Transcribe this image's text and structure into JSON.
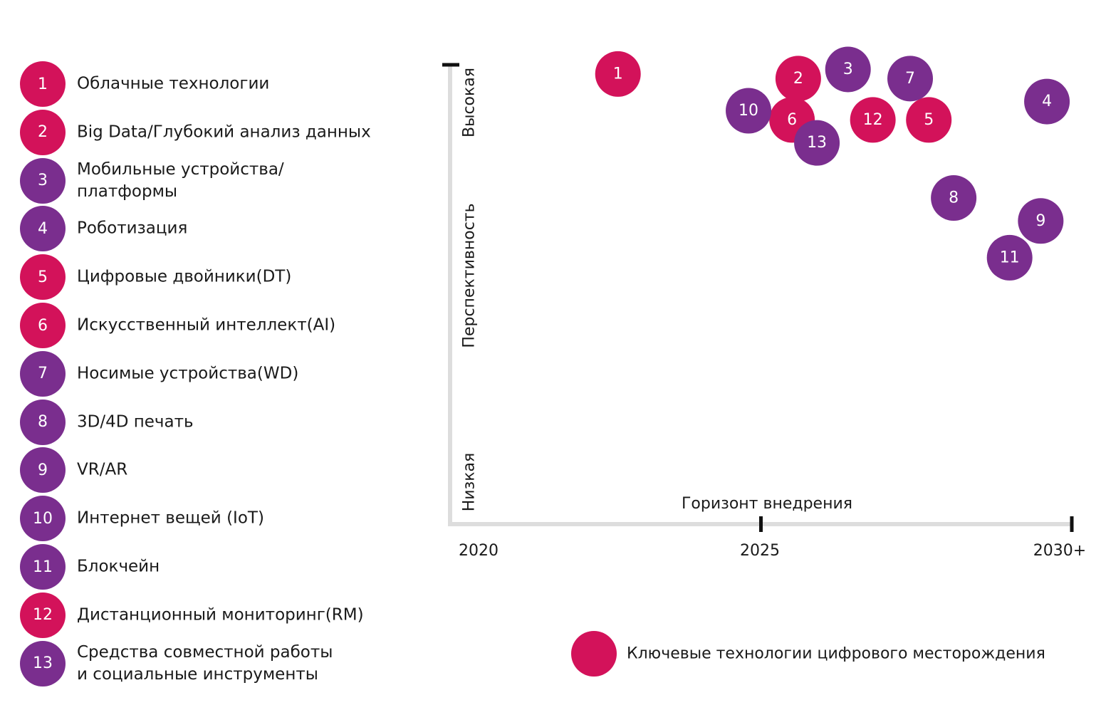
{
  "colors": {
    "key": "#d3125a",
    "other": "#7a2e8e"
  },
  "chart_data": {
    "type": "scatter",
    "xlabel": "Горизонт внедрения",
    "ylabel": "Перспективность",
    "y_low_label": "Низкая",
    "y_high_label": "Высокая",
    "x_ticks": [
      "2020",
      "2025",
      "2030+"
    ],
    "xlim": [
      2020,
      2030
    ],
    "ylim": [
      0,
      10
    ],
    "legend": "Ключевые технологии цифрового месторождения",
    "points": [
      {
        "id": "1",
        "label": "Облачные технологии",
        "x": 2022.7,
        "y": 9.8,
        "key": true
      },
      {
        "id": "2",
        "label": "Big Data/Глубокий анализ данных",
        "x": 2025.6,
        "y": 9.7,
        "key": true
      },
      {
        "id": "3",
        "label": "Мобильные устройства/\nплатформы",
        "x": 2026.4,
        "y": 9.9,
        "key": false
      },
      {
        "id": "4",
        "label": "Роботизация",
        "x": 2029.6,
        "y": 9.2,
        "key": false
      },
      {
        "id": "5",
        "label": "Цифровые двойники(DT)",
        "x": 2027.7,
        "y": 8.8,
        "key": true
      },
      {
        "id": "6",
        "label": "Искусственный интеллект(AI)",
        "x": 2025.5,
        "y": 8.8,
        "key": true
      },
      {
        "id": "7",
        "label": "Носимые устройства(WD)",
        "x": 2027.4,
        "y": 9.7,
        "key": false
      },
      {
        "id": "8",
        "label": "3D/4D печать",
        "x": 2028.1,
        "y": 7.1,
        "key": false
      },
      {
        "id": "9",
        "label": "VR/AR",
        "x": 2029.5,
        "y": 6.6,
        "key": false
      },
      {
        "id": "10",
        "label": "Интернет вещей (IoT)",
        "x": 2024.8,
        "y": 9.0,
        "key": false
      },
      {
        "id": "11",
        "label": "Блокчейн",
        "x": 2029.0,
        "y": 5.8,
        "key": false
      },
      {
        "id": "12",
        "label": "Дистанционный мониторинг(RM)",
        "x": 2026.8,
        "y": 8.8,
        "key": true
      },
      {
        "id": "13",
        "label": "Средства совместной работы\nи социальные инструменты",
        "x": 2025.9,
        "y": 8.3,
        "key": false
      }
    ]
  }
}
